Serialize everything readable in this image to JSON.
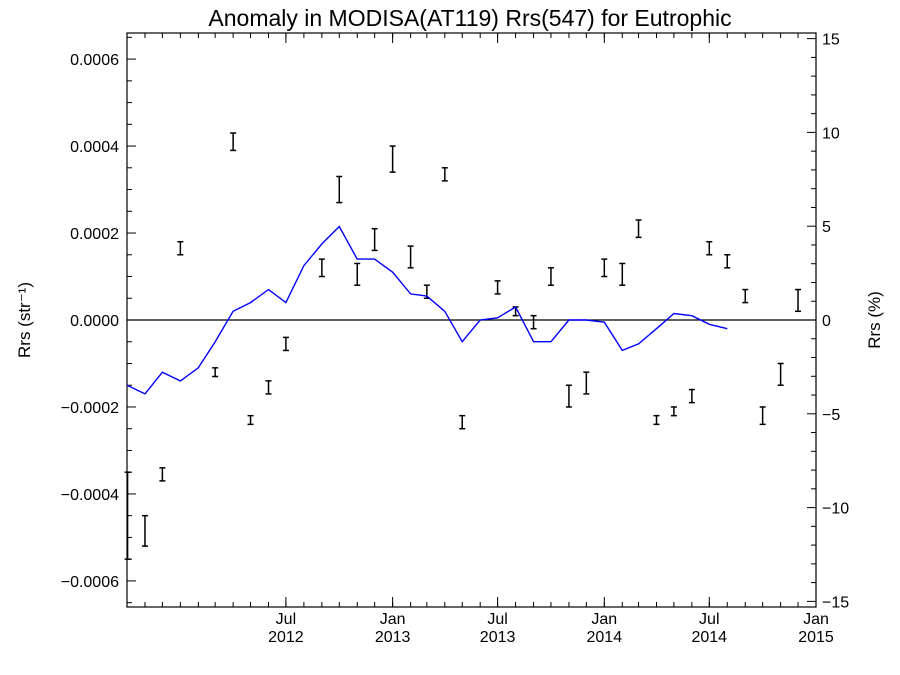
{
  "chart_data": {
    "type": "line",
    "title": "Anomaly in MODISA(AT119) Rrs(547) for Eutrophic",
    "ylabel_left": "Rrs (str⁻¹)",
    "ylabel_right": "Rrs (%)",
    "left_axis": {
      "ylim": [
        -0.00066,
        0.00066
      ],
      "ticks": [
        -0.0006,
        -0.0004,
        -0.0002,
        0.0,
        0.0002,
        0.0004,
        0.0006
      ],
      "tick_labels": [
        "−0.0006",
        "−0.0004",
        "−0.0002",
        "0.0000",
        "0.0002",
        "0.0004",
        "0.0006"
      ]
    },
    "right_axis": {
      "ylim": [
        -15.3,
        15.3
      ],
      "ticks": [
        -15,
        -10,
        -5,
        0,
        5,
        10,
        15
      ],
      "tick_labels": [
        "−15",
        "−10",
        "−5",
        "0",
        "5",
        "10",
        "15"
      ]
    },
    "x_axis": {
      "range": [
        "2011-10-01",
        "2015-01-01"
      ],
      "ticks": [
        {
          "date": "2012-07-01",
          "line1": "Jul",
          "line2": "2012"
        },
        {
          "date": "2013-01-01",
          "line1": "Jan",
          "line2": "2013"
        },
        {
          "date": "2013-07-01",
          "line1": "Jul",
          "line2": "2013"
        },
        {
          "date": "2014-01-01",
          "line1": "Jan",
          "line2": "2014"
        },
        {
          "date": "2014-07-01",
          "line1": "Jul",
          "line2": "2014"
        },
        {
          "date": "2015-01-01",
          "line1": "Jan",
          "line2": "2015"
        }
      ]
    },
    "zero_line": 0,
    "error_bars": {
      "axis": "left",
      "points": [
        {
          "x": "2011-10-02",
          "low": -0.00055,
          "high": -0.00035
        },
        {
          "x": "2011-11-01",
          "low": -0.00052,
          "high": -0.00045
        },
        {
          "x": "2011-12-01",
          "low": -0.00037,
          "high": -0.00034
        },
        {
          "x": "2012-01-01",
          "low": 0.00015,
          "high": 0.00018
        },
        {
          "x": "2012-03-01",
          "low": -0.00013,
          "high": -0.00011
        },
        {
          "x": "2012-04-01",
          "low": 0.00039,
          "high": 0.00043
        },
        {
          "x": "2012-05-01",
          "low": -0.00024,
          "high": -0.00022
        },
        {
          "x": "2012-06-01",
          "low": -0.00017,
          "high": -0.00014
        },
        {
          "x": "2012-07-01",
          "low": -7e-05,
          "high": -4e-05
        },
        {
          "x": "2012-09-01",
          "low": 0.0001,
          "high": 0.00014
        },
        {
          "x": "2012-10-01",
          "low": 0.00027,
          "high": 0.00033
        },
        {
          "x": "2012-11-01",
          "low": 8e-05,
          "high": 0.00013
        },
        {
          "x": "2012-12-01",
          "low": 0.00016,
          "high": 0.00021
        },
        {
          "x": "2013-01-01",
          "low": 0.00034,
          "high": 0.0004
        },
        {
          "x": "2013-02-01",
          "low": 0.00012,
          "high": 0.00017
        },
        {
          "x": "2013-03-01",
          "low": 5e-05,
          "high": 8e-05
        },
        {
          "x": "2013-04-01",
          "low": 0.00032,
          "high": 0.00035
        },
        {
          "x": "2013-05-01",
          "low": -0.00025,
          "high": -0.00022
        },
        {
          "x": "2013-07-01",
          "low": 6e-05,
          "high": 9e-05
        },
        {
          "x": "2013-08-01",
          "low": 1e-05,
          "high": 3e-05
        },
        {
          "x": "2013-09-01",
          "low": -2e-05,
          "high": 1e-05
        },
        {
          "x": "2013-10-01",
          "low": 8e-05,
          "high": 0.00012
        },
        {
          "x": "2013-11-01",
          "low": -0.0002,
          "high": -0.00015
        },
        {
          "x": "2013-12-01",
          "low": -0.00017,
          "high": -0.00012
        },
        {
          "x": "2014-01-01",
          "low": 0.0001,
          "high": 0.00014
        },
        {
          "x": "2014-02-01",
          "low": 8e-05,
          "high": 0.00013
        },
        {
          "x": "2014-03-01",
          "low": 0.00019,
          "high": 0.00023
        },
        {
          "x": "2014-04-01",
          "low": -0.00024,
          "high": -0.00022
        },
        {
          "x": "2014-05-01",
          "low": -0.00022,
          "high": -0.0002
        },
        {
          "x": "2014-06-01",
          "low": -0.00019,
          "high": -0.00016
        },
        {
          "x": "2014-07-01",
          "low": 0.00015,
          "high": 0.00018
        },
        {
          "x": "2014-08-01",
          "low": 0.00012,
          "high": 0.00015
        },
        {
          "x": "2014-09-01",
          "low": 4e-05,
          "high": 7e-05
        },
        {
          "x": "2014-10-01",
          "low": -0.00024,
          "high": -0.0002
        },
        {
          "x": "2014-11-01",
          "low": -0.00015,
          "high": -0.0001
        },
        {
          "x": "2014-12-01",
          "low": 2e-05,
          "high": 7e-05
        }
      ]
    },
    "series": [
      {
        "axis": "left",
        "color": "#0000ff",
        "points": [
          {
            "x": "2011-10-01",
            "y": -0.00015
          },
          {
            "x": "2011-11-01",
            "y": -0.00017
          },
          {
            "x": "2011-12-01",
            "y": -0.00012
          },
          {
            "x": "2012-01-01",
            "y": -0.00014
          },
          {
            "x": "2012-02-01",
            "y": -0.00011
          },
          {
            "x": "2012-03-01",
            "y": -5e-05
          },
          {
            "x": "2012-04-01",
            "y": 2e-05
          },
          {
            "x": "2012-05-01",
            "y": 4e-05
          },
          {
            "x": "2012-06-01",
            "y": 7e-05
          },
          {
            "x": "2012-07-01",
            "y": 4e-05
          },
          {
            "x": "2012-08-01",
            "y": 0.000125
          },
          {
            "x": "2012-09-01",
            "y": 0.000175
          },
          {
            "x": "2012-10-01",
            "y": 0.000215
          },
          {
            "x": "2012-11-01",
            "y": 0.00014
          },
          {
            "x": "2012-12-01",
            "y": 0.00014
          },
          {
            "x": "2013-01-01",
            "y": 0.00011
          },
          {
            "x": "2013-02-01",
            "y": 6e-05
          },
          {
            "x": "2013-03-01",
            "y": 5.5e-05
          },
          {
            "x": "2013-04-01",
            "y": 2e-05
          },
          {
            "x": "2013-05-01",
            "y": -5e-05
          },
          {
            "x": "2013-06-01",
            "y": 0.0
          },
          {
            "x": "2013-07-01",
            "y": 5e-06
          },
          {
            "x": "2013-08-01",
            "y": 3e-05
          },
          {
            "x": "2013-09-01",
            "y": -5e-05
          },
          {
            "x": "2013-10-01",
            "y": -5e-05
          },
          {
            "x": "2013-11-01",
            "y": 0.0
          },
          {
            "x": "2013-12-01",
            "y": 0.0
          },
          {
            "x": "2014-01-01",
            "y": -5e-06
          },
          {
            "x": "2014-02-01",
            "y": -7e-05
          },
          {
            "x": "2014-03-01",
            "y": -5.5e-05
          },
          {
            "x": "2014-04-01",
            "y": -2e-05
          },
          {
            "x": "2014-05-01",
            "y": 1.5e-05
          },
          {
            "x": "2014-06-01",
            "y": 1e-05
          },
          {
            "x": "2014-07-01",
            "y": -1e-05
          },
          {
            "x": "2014-08-01",
            "y": -2e-05
          }
        ]
      }
    ],
    "grid": false,
    "legend": "none"
  }
}
